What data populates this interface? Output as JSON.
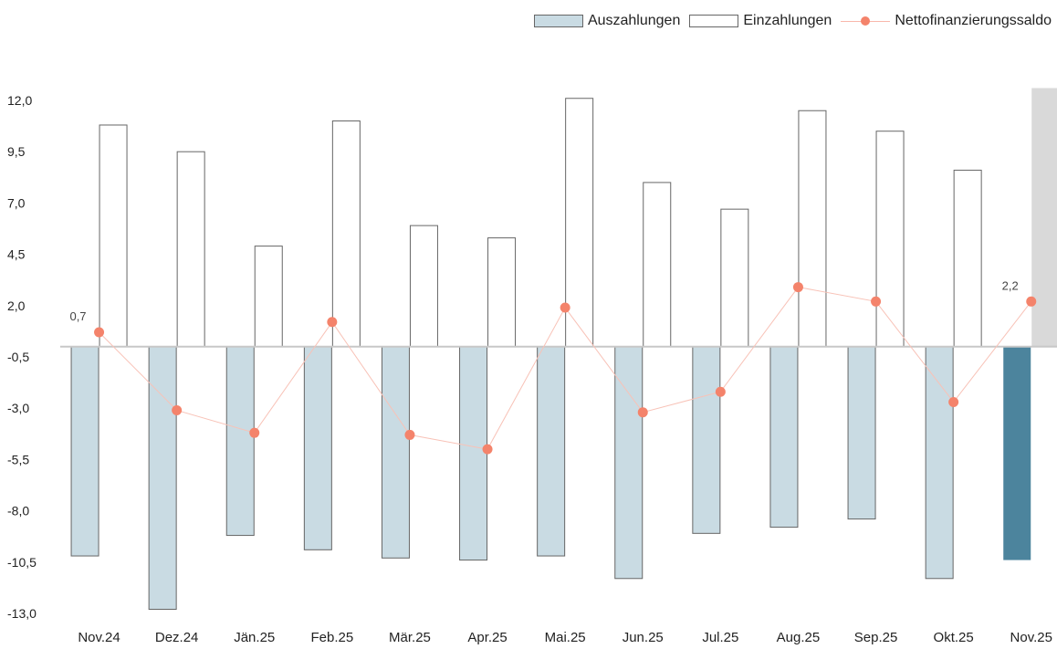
{
  "legend": {
    "aus_label": "Auszahlungen",
    "ein_label": "Einzahlungen",
    "netto_label": "Nettofinanzierungssaldo"
  },
  "colors": {
    "aus": "#c9dbe3",
    "aus_highlight": "#4c849d",
    "ein": "#ffffff",
    "ein_highlight": "#d9d9d9",
    "netto": "#f4836b",
    "netto_line": "#f8c2b7",
    "outline": "#666666",
    "zero_line": "#c8c8c8"
  },
  "chart_data": {
    "type": "bar",
    "categories": [
      "Nov.24",
      "Dez.24",
      "Jän.25",
      "Feb.25",
      "Mär.25",
      "Apr.25",
      "Mai.25",
      "Jun.25",
      "Jul.25",
      "Aug.25",
      "Sep.25",
      "Okt.25",
      "Nov.25"
    ],
    "series": [
      {
        "name": "Auszahlungen",
        "type": "bar",
        "values": [
          -10.2,
          -12.8,
          -9.2,
          -9.9,
          -10.3,
          -10.4,
          -10.2,
          -11.3,
          -9.1,
          -8.8,
          -8.4,
          -11.3,
          -10.4
        ]
      },
      {
        "name": "Einzahlungen",
        "type": "bar",
        "values": [
          10.8,
          9.5,
          4.9,
          11.0,
          5.9,
          5.3,
          12.1,
          8.0,
          6.7,
          11.5,
          10.5,
          8.6,
          12.6
        ]
      },
      {
        "name": "Nettofinanzierungssaldo",
        "type": "line",
        "values": [
          0.7,
          -3.1,
          -4.2,
          1.2,
          -4.3,
          -5.0,
          1.9,
          -3.2,
          -2.2,
          2.9,
          2.2,
          -2.7,
          2.2
        ]
      }
    ],
    "point_labels": [
      {
        "index": 0,
        "text": "0,7"
      },
      {
        "index": 12,
        "text": "2,2"
      }
    ],
    "highlight_index": 12,
    "yticks": [
      "12,0",
      "9,5",
      "7,0",
      "4,5",
      "2,0",
      "-0,5",
      "-3,0",
      "-5,5",
      "-8,0",
      "-10,5",
      "-13,0"
    ],
    "ytick_values": [
      12.0,
      9.5,
      7.0,
      4.5,
      2.0,
      -0.5,
      -3.0,
      -5.5,
      -8.0,
      -10.5,
      -13.0
    ],
    "ylim": [
      -13.0,
      12.0
    ],
    "grid": false,
    "legend_position": "top-right"
  }
}
